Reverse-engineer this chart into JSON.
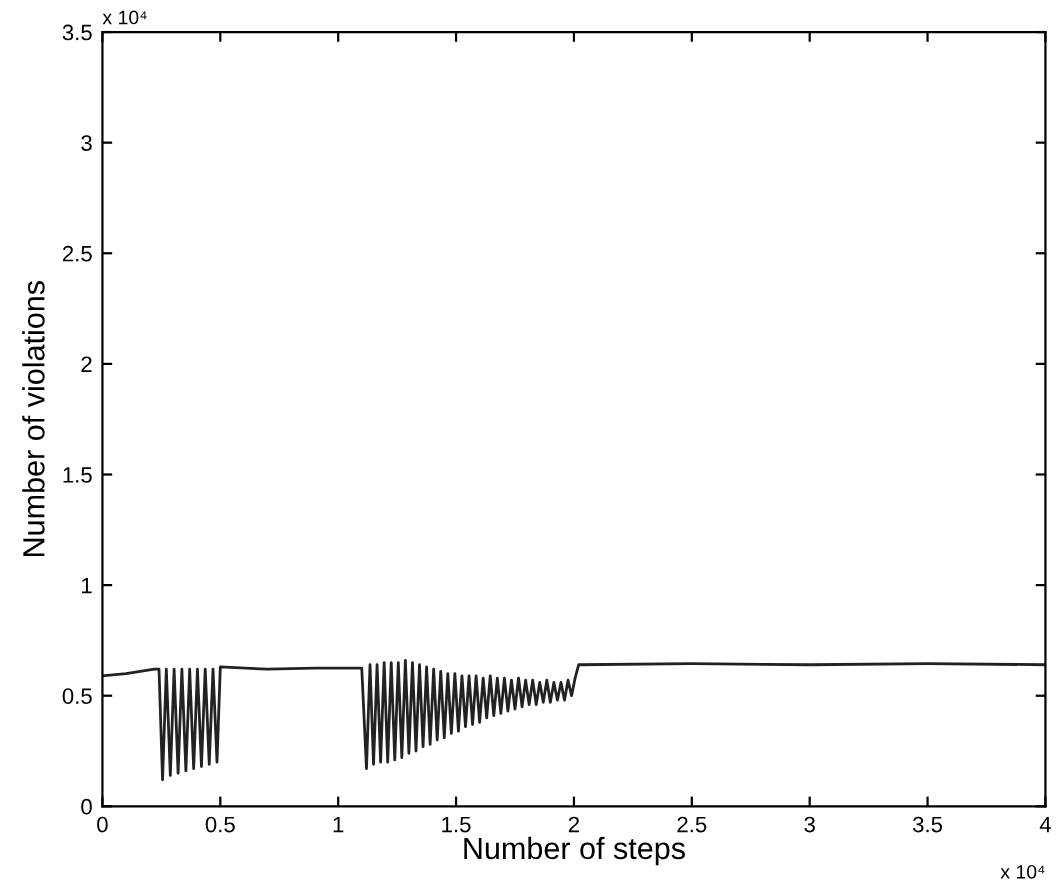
{
  "chart_data": {
    "type": "line",
    "xlabel": "Number of steps",
    "ylabel": "Number of violations",
    "annotations": [
      "x 10⁴",
      "x 10⁴"
    ],
    "series": [
      {
        "color": "#222222",
        "x": [
          0,
          0.1,
          0.22,
          0.24,
          0.255,
          0.271,
          0.288,
          0.304,
          0.321,
          0.337,
          0.354,
          0.37,
          0.387,
          0.403,
          0.42,
          0.436,
          0.453,
          0.469,
          0.486,
          0.5,
          0.7,
          0.9,
          1.1,
          1.12,
          1.135,
          1.15,
          1.165,
          1.18,
          1.195,
          1.21,
          1.225,
          1.24,
          1.255,
          1.27,
          1.285,
          1.3,
          1.315,
          1.33,
          1.345,
          1.36,
          1.375,
          1.39,
          1.405,
          1.42,
          1.435,
          1.45,
          1.465,
          1.48,
          1.495,
          1.51,
          1.525,
          1.54,
          1.555,
          1.57,
          1.585,
          1.6,
          1.615,
          1.63,
          1.645,
          1.66,
          1.675,
          1.69,
          1.705,
          1.72,
          1.735,
          1.75,
          1.765,
          1.78,
          1.795,
          1.81,
          1.825,
          1.84,
          1.855,
          1.87,
          1.885,
          1.9,
          1.915,
          1.93,
          1.945,
          1.96,
          1.975,
          1.99,
          2.005,
          2.02,
          2.5,
          3,
          3.5,
          4
        ],
        "values": [
          0.59,
          0.6,
          0.62,
          0.62,
          0.12,
          0.62,
          0.14,
          0.62,
          0.15,
          0.62,
          0.16,
          0.62,
          0.17,
          0.62,
          0.18,
          0.62,
          0.19,
          0.62,
          0.2,
          0.63,
          0.62,
          0.625,
          0.625,
          0.17,
          0.64,
          0.19,
          0.64,
          0.2,
          0.65,
          0.2,
          0.65,
          0.21,
          0.65,
          0.22,
          0.66,
          0.24,
          0.65,
          0.25,
          0.64,
          0.27,
          0.63,
          0.28,
          0.62,
          0.3,
          0.61,
          0.31,
          0.6,
          0.33,
          0.6,
          0.34,
          0.59,
          0.36,
          0.59,
          0.37,
          0.59,
          0.38,
          0.58,
          0.4,
          0.59,
          0.41,
          0.58,
          0.42,
          0.58,
          0.43,
          0.57,
          0.44,
          0.58,
          0.45,
          0.57,
          0.46,
          0.57,
          0.46,
          0.56,
          0.47,
          0.57,
          0.47,
          0.56,
          0.48,
          0.56,
          0.48,
          0.57,
          0.5,
          0.58,
          0.64,
          0.645,
          0.64,
          0.645,
          0.64
        ]
      }
    ],
    "xlim": [
      0,
      4
    ],
    "xticks": [
      0,
      0.5,
      1,
      1.5,
      2,
      2.5,
      3,
      3.5,
      4
    ],
    "ylim": [
      0,
      3.5
    ],
    "yticks": [
      0,
      0.5,
      1,
      1.5,
      2,
      2.5,
      3,
      3.5
    ],
    "grid": false,
    "legend": false,
    "marker": "none",
    "line_style": "solid"
  }
}
